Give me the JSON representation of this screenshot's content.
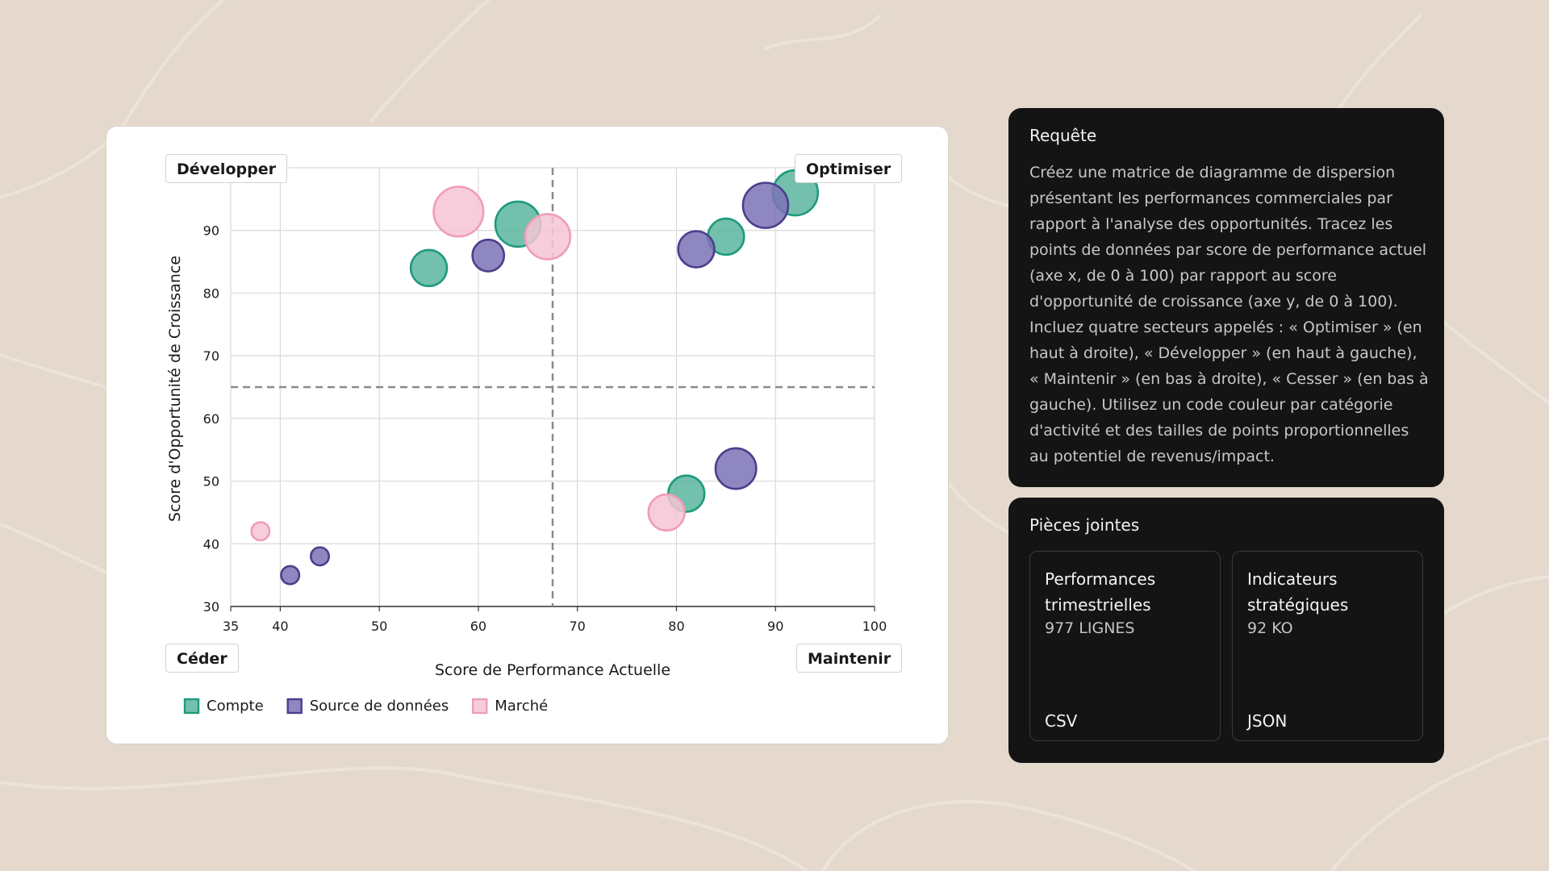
{
  "chart_data": {
    "type": "scatter",
    "title": "",
    "xlabel": "Score de Performance Actuelle",
    "ylabel": "Score d'Opportunité de Croissance",
    "xlim": [
      35,
      100
    ],
    "ylim": [
      30,
      100
    ],
    "xticks": [
      35,
      40,
      50,
      60,
      70,
      80,
      90,
      100
    ],
    "yticks": [
      30,
      40,
      50,
      60,
      70,
      80,
      90
    ],
    "grid": true,
    "thresholds": {
      "x": 67.5,
      "y": 65
    },
    "legend_position": "bottom-left",
    "quadrants": {
      "top_left": "Développer",
      "top_right": "Optimiser",
      "bottom_left": "Céder",
      "bottom_right": "Maintenir"
    },
    "series": [
      {
        "name": "Compte",
        "color": "#1f9a7d",
        "fill": "#5bb59e",
        "points": [
          {
            "x": 55,
            "y": 84,
            "size": 4
          },
          {
            "x": 64,
            "y": 91,
            "size": 5
          },
          {
            "x": 85,
            "y": 89,
            "size": 4
          },
          {
            "x": 92,
            "y": 96,
            "size": 5
          },
          {
            "x": 81,
            "y": 48,
            "size": 4
          }
        ]
      },
      {
        "name": "Source de données",
        "color": "#4a3f8c",
        "fill": "#7b72b5",
        "points": [
          {
            "x": 61,
            "y": 86,
            "size": 3.5
          },
          {
            "x": 82,
            "y": 87,
            "size": 4
          },
          {
            "x": 89,
            "y": 94,
            "size": 5
          },
          {
            "x": 86,
            "y": 52,
            "size": 4.5
          },
          {
            "x": 41,
            "y": 35,
            "size": 2
          },
          {
            "x": 44,
            "y": 38,
            "size": 2
          }
        ]
      },
      {
        "name": "Marché",
        "color": "#ef9db8",
        "fill": "#f7c4d5",
        "points": [
          {
            "x": 58,
            "y": 93,
            "size": 5.5
          },
          {
            "x": 67,
            "y": 89,
            "size": 5
          },
          {
            "x": 79,
            "y": 45,
            "size": 4
          },
          {
            "x": 38,
            "y": 42,
            "size": 2
          }
        ]
      }
    ]
  },
  "request_panel": {
    "title": "Requête",
    "text": "Créez une matrice de diagramme de dispersion présentant les performances commerciales par rapport à l'analyse des opportunités. Tracez les points de données par score de performance actuel (axe x, de 0 à 100) par rapport au score d'opportunité de croissance (axe y, de 0 à 100). Incluez quatre secteurs appelés : « Optimiser » (en haut à droite), « Développer » (en haut à gauche), « Maintenir » (en bas à droite), « Cesser » (en bas à gauche). Utilisez un code couleur par catégorie d'activité et des tailles de points proportionnelles au potentiel de revenus/impact."
  },
  "attachments_panel": {
    "title": "Pièces jointes",
    "files": [
      {
        "name": "Performances trimestrielles",
        "meta": "977 LIGNES",
        "type": "CSV"
      },
      {
        "name": "Indicateurs stratégiques",
        "meta": "92 KO",
        "type": "JSON"
      }
    ]
  }
}
